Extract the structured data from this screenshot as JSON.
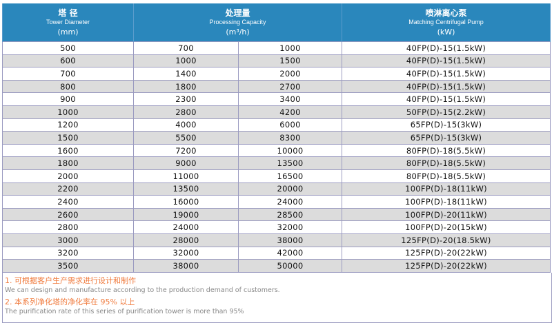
{
  "header": {
    "diameter": {
      "cn": "塔 径",
      "en": "Tower Diameter",
      "unit": "(mm)"
    },
    "capacity": {
      "cn": "处理量",
      "en": "Processing Capacity",
      "unit": "(m³/h)"
    },
    "pump": {
      "cn": "喷淋离心泵",
      "en": "Matching Centrifugal Pump",
      "unit": "(kW)"
    }
  },
  "rows": [
    [
      "500",
      "700",
      "1000",
      "40FP(D)-15(1.5kW)"
    ],
    [
      "600",
      "1000",
      "1500",
      "40FP(D)-15(1.5kW)"
    ],
    [
      "700",
      "1400",
      "2000",
      "40FP(D)-15(1.5kW)"
    ],
    [
      "800",
      "1800",
      "2700",
      "40FP(D)-15(1.5kW)"
    ],
    [
      "900",
      "2300",
      "3400",
      "40FP(D)-15(1.5kW)"
    ],
    [
      "1000",
      "2800",
      "4200",
      "50FP(D)-15(2.2kW)"
    ],
    [
      "1200",
      "4000",
      "6000",
      "65FP(D)-15(3kW)"
    ],
    [
      "1500",
      "5500",
      "8300",
      "65FP(D)-15(3kW)"
    ],
    [
      "1600",
      "7200",
      "10000",
      "80FP(D)-18(5.5kW)"
    ],
    [
      "1800",
      "9000",
      "13500",
      "80FP(D)-18(5.5kW)"
    ],
    [
      "2000",
      "11000",
      "16500",
      "80FP(D)-18(5.5kW)"
    ],
    [
      "2200",
      "13500",
      "20000",
      "100FP(D)-18(11kW)"
    ],
    [
      "2400",
      "16000",
      "24000",
      "100FP(D)-18(11kW)"
    ],
    [
      "2600",
      "19000",
      "28500",
      "100FP(D)-20(11kW)"
    ],
    [
      "2800",
      "24000",
      "32000",
      "100FP(D)-20(15kW)"
    ],
    [
      "3000",
      "28000",
      "38000",
      "125FP(D)-20(18.5kW)"
    ],
    [
      "3200",
      "32000",
      "42000",
      "125FP(D)-20(22kW)"
    ],
    [
      "3500",
      "38000",
      "50000",
      "125FP(D)-20(22kW)"
    ]
  ],
  "notes": [
    {
      "cn": "1. 可根据客户生产需求进行设计和制作",
      "en": "We can design and manufacture according to the production demand of customers."
    },
    {
      "cn": "2. 本系列净化塔的净化率在 95% 以上",
      "en": "The purification rate of this series of purification tower is more than 95%"
    }
  ],
  "colors": {
    "header_bg": "#2a87bc",
    "alt_row": "#dcdcdc",
    "note_cn": "#f07a3c",
    "note_en": "#888888"
  }
}
